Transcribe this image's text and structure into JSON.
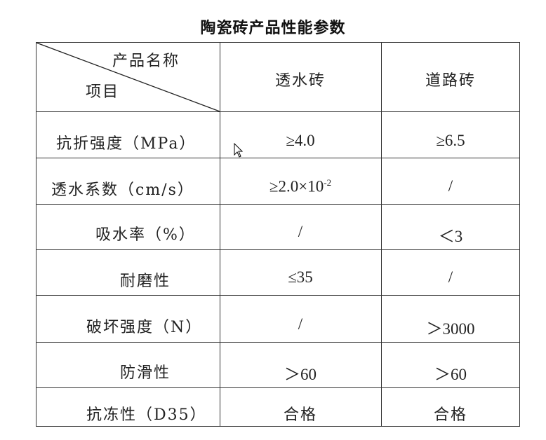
{
  "title": "陶瓷砖产品性能参数",
  "header": {
    "product_name_label": "产品名称",
    "item_label": "项目",
    "columns": [
      "透水砖",
      "道路砖"
    ]
  },
  "rows": [
    {
      "item": "抗折强度（MPa）",
      "permeable": "≥4.0",
      "road": "≥6.5"
    },
    {
      "item": "透水系数（cm/s）",
      "permeable": "≥2.0×10",
      "permeable_exp": "-2",
      "road": "/"
    },
    {
      "item": "吸水率（%）",
      "permeable": "/",
      "road": "＜3"
    },
    {
      "item": "耐磨性",
      "permeable": "≤35",
      "road": "/"
    },
    {
      "item": "破坏强度（N）",
      "permeable": "/",
      "road": "＞3000"
    },
    {
      "item": "防滑性",
      "permeable": "＞60",
      "road": "＞60"
    },
    {
      "item": "抗冻性（D35）",
      "permeable": "合格",
      "road": "合格"
    }
  ]
}
